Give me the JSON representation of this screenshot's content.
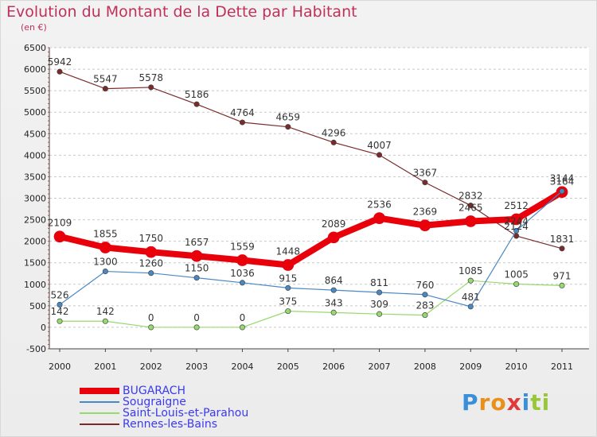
{
  "title": "Evolution du Montant de la Dette par Habitant",
  "subtitle": "(en €)",
  "logo_text": "Proxiti",
  "chart_data": {
    "type": "line",
    "x": [
      "2000",
      "2001",
      "2002",
      "2003",
      "2004",
      "2005",
      "2006",
      "2007",
      "2008",
      "2009",
      "2010",
      "2011"
    ],
    "ylim": [
      -500,
      6500
    ],
    "yticks": [
      -500,
      0,
      500,
      1000,
      1500,
      2000,
      2500,
      3000,
      3500,
      4000,
      4500,
      5000,
      5500,
      6000,
      6500
    ],
    "grid": "horizontal-dashed",
    "legend_position": "bottom-left",
    "series": [
      {
        "name": "BUGARACH",
        "color": "#e8000b",
        "line_width": 8,
        "values": [
          2109,
          1855,
          1750,
          1657,
          1559,
          1448,
          2089,
          2536,
          2369,
          2465,
          2512,
          3144
        ]
      },
      {
        "name": "Sougraigne",
        "color": "#4a88c4",
        "line_width": 1.2,
        "values": [
          526,
          1300,
          1260,
          1150,
          1036,
          915,
          864,
          811,
          760,
          481,
          2244,
          3164
        ]
      },
      {
        "name": "Saint-Louis-et-Parahou",
        "color": "#96d96e",
        "line_width": 1.2,
        "values": [
          142,
          142,
          0,
          0,
          0,
          375,
          343,
          309,
          283,
          1085,
          1005,
          971
        ]
      },
      {
        "name": "Rennes-les-Bains",
        "color": "#7a2a2a",
        "line_width": 1.2,
        "values": [
          5942,
          5547,
          5578,
          5186,
          4764,
          4659,
          4296,
          4007,
          3367,
          2832,
          2124,
          1831
        ]
      }
    ]
  }
}
